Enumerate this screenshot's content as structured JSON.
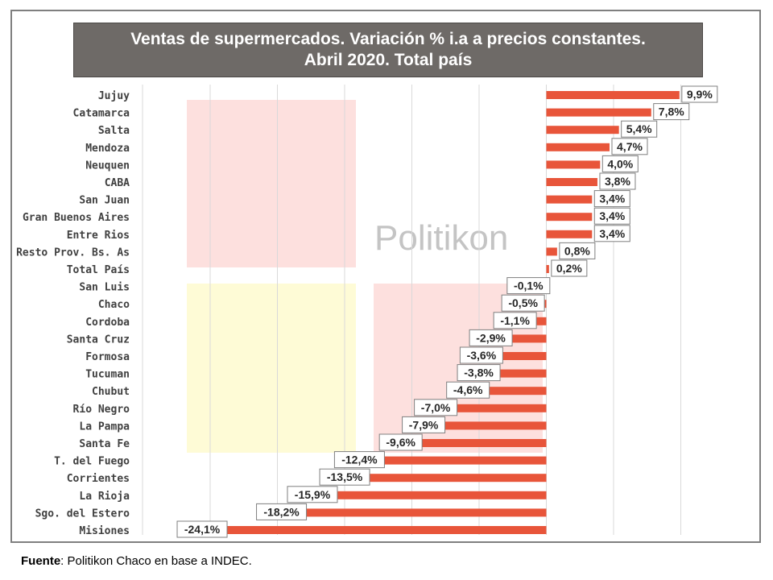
{
  "title": "Ventas de supermercados. Variación % i.a a precios constantes.\nAbril 2020. Total país",
  "watermark": "Politikon",
  "footer": {
    "label": "Fuente",
    "text": ": Politikon Chaco en base a INDEC."
  },
  "colors": {
    "bar": "#e8553a",
    "title_bg": "#6e6a67",
    "grid": "#d9d9d9",
    "wm_red": "#fde0de",
    "wm_yellow": "#fefbd6"
  },
  "chart_data": {
    "type": "bar",
    "orientation": "horizontal",
    "title": "Ventas de supermercados. Variación % i.a a precios constantes. Abril 2020. Total país",
    "xlim": [
      -28,
      12
    ],
    "grid": true,
    "categories": [
      "Jujuy",
      "Catamarca",
      "Salta",
      "Mendoza",
      "Neuquen",
      "CABA",
      "San Juan",
      "Gran Buenos Aires",
      "Entre Rios",
      "Resto Prov. Bs. As",
      "Total País",
      "San Luis",
      "Chaco",
      "Cordoba",
      "Santa Cruz",
      "Formosa",
      "Tucuman",
      "Chubut",
      "Río Negro",
      "La Pampa",
      "Santa Fe",
      "T. del Fuego",
      "Corrientes",
      "La Rioja",
      "Sgo. del Estero",
      "Misiones"
    ],
    "values": [
      9.9,
      7.8,
      5.4,
      4.7,
      4.0,
      3.8,
      3.4,
      3.4,
      3.4,
      0.8,
      0.2,
      -0.1,
      -0.5,
      -1.1,
      -2.9,
      -3.6,
      -3.8,
      -4.6,
      -7.0,
      -7.9,
      -9.6,
      -12.4,
      -13.5,
      -15.9,
      -18.2,
      -24.1
    ],
    "data_labels": [
      "9,9%",
      "7,8%",
      "5,4%",
      "4,7%",
      "4,0%",
      "3,8%",
      "3,4%",
      "3,4%",
      "3,4%",
      "0,8%",
      "0,2%",
      "-0,1%",
      "-0,5%",
      "-1,1%",
      "-2,9%",
      "-3,6%",
      "-3,8%",
      "-4,6%",
      "-7,0%",
      "-7,9%",
      "-9,6%",
      "-12,4%",
      "-13,5%",
      "-15,9%",
      "-18,2%",
      "-24,1%"
    ]
  }
}
